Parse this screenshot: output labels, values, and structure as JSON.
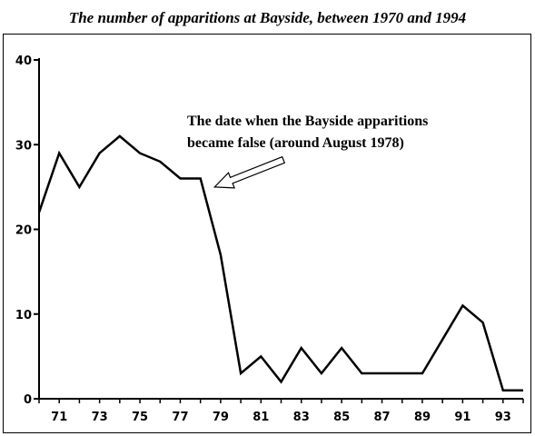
{
  "chart_data": {
    "type": "line",
    "title": "The number of apparitions at Bayside, between 1970 and 1994",
    "xlabel": "",
    "ylabel": "",
    "xlim": [
      70,
      94
    ],
    "ylim": [
      0,
      40
    ],
    "y_ticks": [
      0,
      10,
      20,
      30,
      40
    ],
    "x_ticks": [
      71,
      73,
      75,
      77,
      79,
      81,
      83,
      85,
      87,
      89,
      91,
      93
    ],
    "grid": false,
    "series": [
      {
        "x": [
          70,
          71,
          72,
          73,
          74,
          75,
          76,
          77,
          78,
          79,
          80,
          81,
          82,
          83,
          84,
          85,
          86,
          87,
          88,
          89,
          90,
          91,
          92,
          93,
          94
        ],
        "values": [
          22,
          29,
          25,
          29,
          31,
          29,
          28,
          26,
          26,
          17,
          3,
          5,
          2,
          6,
          3,
          6,
          3,
          3,
          3,
          3,
          7,
          11,
          9,
          1,
          1
        ]
      }
    ],
    "annotations": [
      {
        "lines": [
          "The date when the Bayside apparitions",
          "became false (around August 1978)"
        ],
        "points_to": [
          78.7,
          25
        ]
      }
    ]
  }
}
